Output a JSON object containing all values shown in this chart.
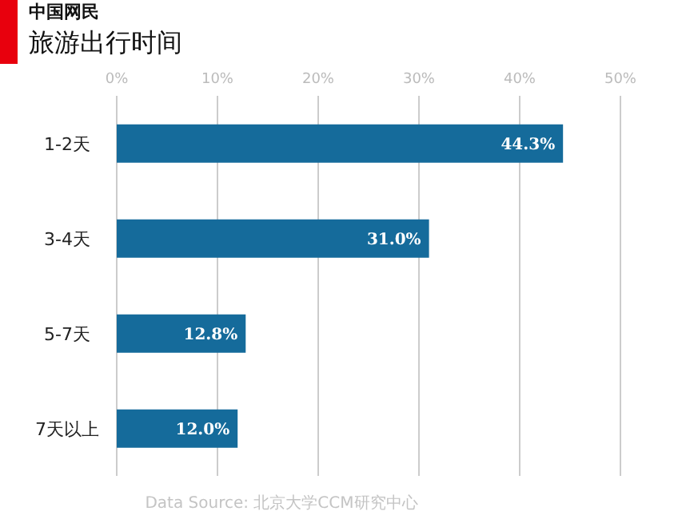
{
  "chart_data": {
    "type": "bar",
    "orientation": "horizontal",
    "subtitle": "中国网民",
    "title": "旅游出行时间",
    "categories": [
      "1-2天",
      "3-4天",
      "5-7天",
      "7天以上"
    ],
    "values": [
      44.3,
      31.0,
      12.8,
      12.0
    ],
    "value_labels": [
      "44.3%",
      "31.0%",
      "12.8%",
      "12.0%"
    ],
    "color": "#156b9b",
    "xlim": [
      0,
      50
    ],
    "xticks": [
      {
        "value": 0,
        "label": "0%"
      },
      {
        "value": 10,
        "label": "10%"
      },
      {
        "value": 20,
        "label": "20%"
      },
      {
        "value": 30,
        "label": "30%"
      },
      {
        "value": 40,
        "label": "40%"
      },
      {
        "value": 50,
        "label": "50%"
      }
    ],
    "grid": "x",
    "annotations": [
      "Data Source: 北京大学CCM研究中心"
    ]
  }
}
